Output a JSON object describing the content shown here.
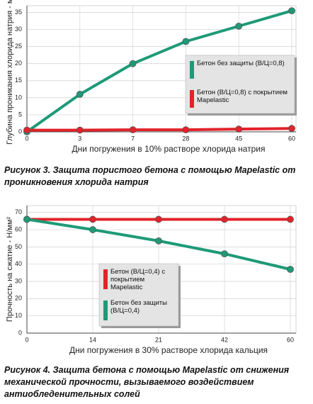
{
  "chart_data": [
    {
      "type": "line",
      "y_label": "Глубина проникания хлорида натрия - мм",
      "x_label": "Дни погружения в 10% растворе хлорида натрия",
      "caption": "Рисунок 3. Защита пористого бетона с помощью Mapelastic от проникновения хлорида натрия",
      "categories": [
        "0",
        "3",
        "7",
        "28",
        "45",
        "60"
      ],
      "series": [
        {
          "name": "Бетон без защиты (В/Ц=0,8)",
          "color": "#1e9a78",
          "values": [
            0,
            11,
            20,
            26.5,
            31,
            35.5
          ]
        },
        {
          "name": "Бетон (В/Ц=0,8) с покрытием Mapelastic",
          "color": "#e2232a",
          "values": [
            0.5,
            0.5,
            0.6,
            0.6,
            0.8,
            1
          ]
        }
      ],
      "ylim": [
        0,
        37
      ],
      "yticks": [
        0,
        5,
        10,
        15,
        20,
        25,
        30,
        35
      ],
      "grid": true
    },
    {
      "type": "line",
      "y_label": "Прочность на сжатие - Н/мм²",
      "x_label": "Дни погружения в 30% растворе хлорида кальция",
      "caption": "Рисунок 4. Защита бетона с помощью Mapelastic от снижения механической прочности, вызываемого воздействием антиобледенительных солей",
      "categories": [
        "0",
        "14",
        "21",
        "42",
        "60"
      ],
      "series": [
        {
          "name": "Бетон (В/Ц=0,4) с покрытием Mapelastic",
          "color": "#e2232a",
          "values": [
            66,
            66,
            66,
            66,
            66
          ]
        },
        {
          "name": "Бетон без защиты (В/Ц=0,4)",
          "color": "#1e9a78",
          "values": [
            66,
            60,
            53.5,
            46,
            37
          ]
        }
      ],
      "ylim": [
        0,
        74
      ],
      "yticks": [
        0,
        10,
        20,
        30,
        40,
        50,
        60,
        70
      ],
      "grid": true
    }
  ]
}
